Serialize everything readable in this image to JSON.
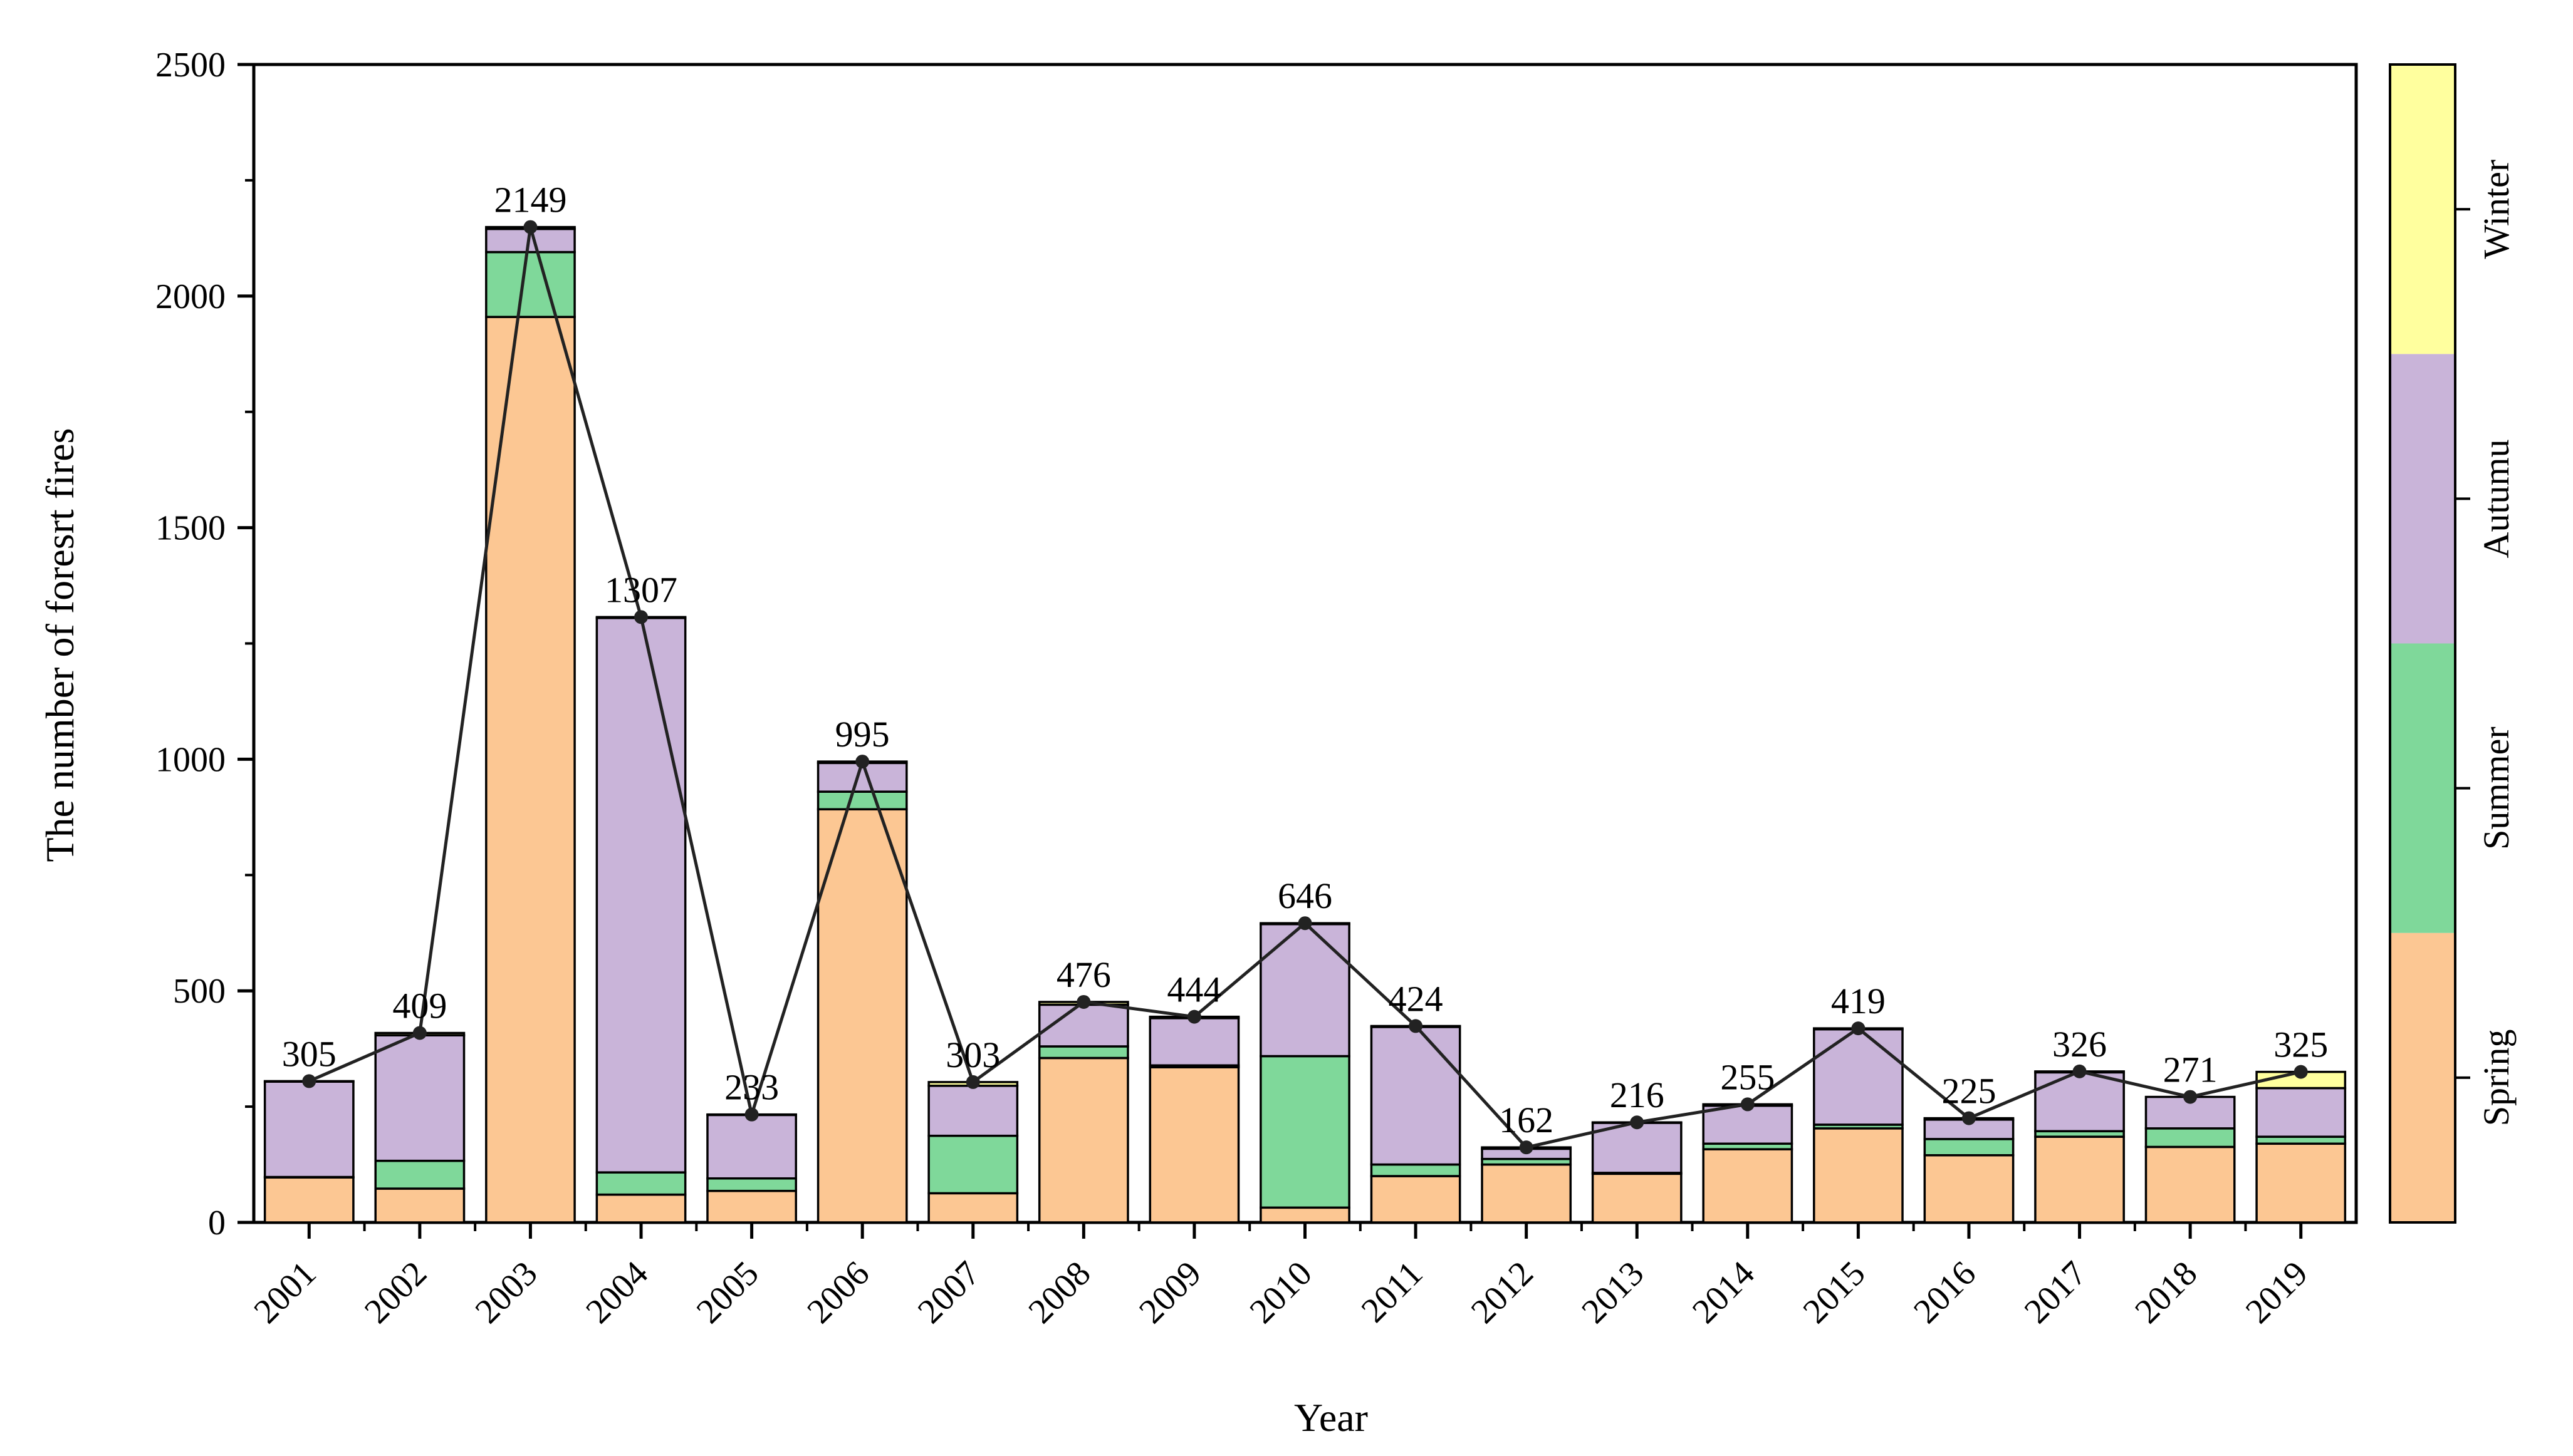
{
  "chart_data": {
    "type": "bar",
    "stacked": true,
    "xlabel": "Year",
    "ylabel": "The number of foresrt fires",
    "ylim": [
      0,
      2500
    ],
    "yticks": [
      0,
      500,
      1000,
      1500,
      2000,
      2500
    ],
    "categories": [
      "2001",
      "2002",
      "2003",
      "2004",
      "2005",
      "2006",
      "2007",
      "2008",
      "2009",
      "2010",
      "2011",
      "2012",
      "2013",
      "2014",
      "2015",
      "2016",
      "2017",
      "2018",
      "2019"
    ],
    "series": [
      {
        "name": "Spring",
        "color": "#FCC793",
        "values": [
          97,
          73,
          1955,
          60,
          68,
          892,
          63,
          355,
          335,
          32,
          100,
          125,
          105,
          158,
          203,
          145,
          185,
          163,
          170
        ]
      },
      {
        "name": "Summer",
        "color": "#7FD89A",
        "values": [
          1,
          60,
          140,
          48,
          27,
          38,
          124,
          25,
          4,
          327,
          25,
          12,
          2,
          12,
          8,
          35,
          12,
          40,
          15
        ]
      },
      {
        "name": "Autumu",
        "color": "#C9B4D9",
        "values": [
          206,
          271,
          50,
          1197,
          137,
          62,
          108,
          90,
          102,
          285,
          297,
          22,
          108,
          82,
          206,
          42,
          127,
          68,
          105
        ]
      },
      {
        "name": "Winter",
        "color": "#FFFF9E",
        "values": [
          1,
          5,
          4,
          2,
          1,
          3,
          8,
          6,
          3,
          2,
          2,
          3,
          1,
          3,
          2,
          3,
          2,
          0,
          35
        ]
      }
    ],
    "totals": [
      305,
      409,
      2149,
      1307,
      233,
      995,
      303,
      476,
      444,
      646,
      424,
      162,
      216,
      255,
      419,
      225,
      326,
      271,
      325
    ],
    "legend": {
      "type": "colorbar",
      "position": "right",
      "entries": [
        "Spring",
        "Summer",
        "Autumu",
        "Winter"
      ]
    }
  }
}
